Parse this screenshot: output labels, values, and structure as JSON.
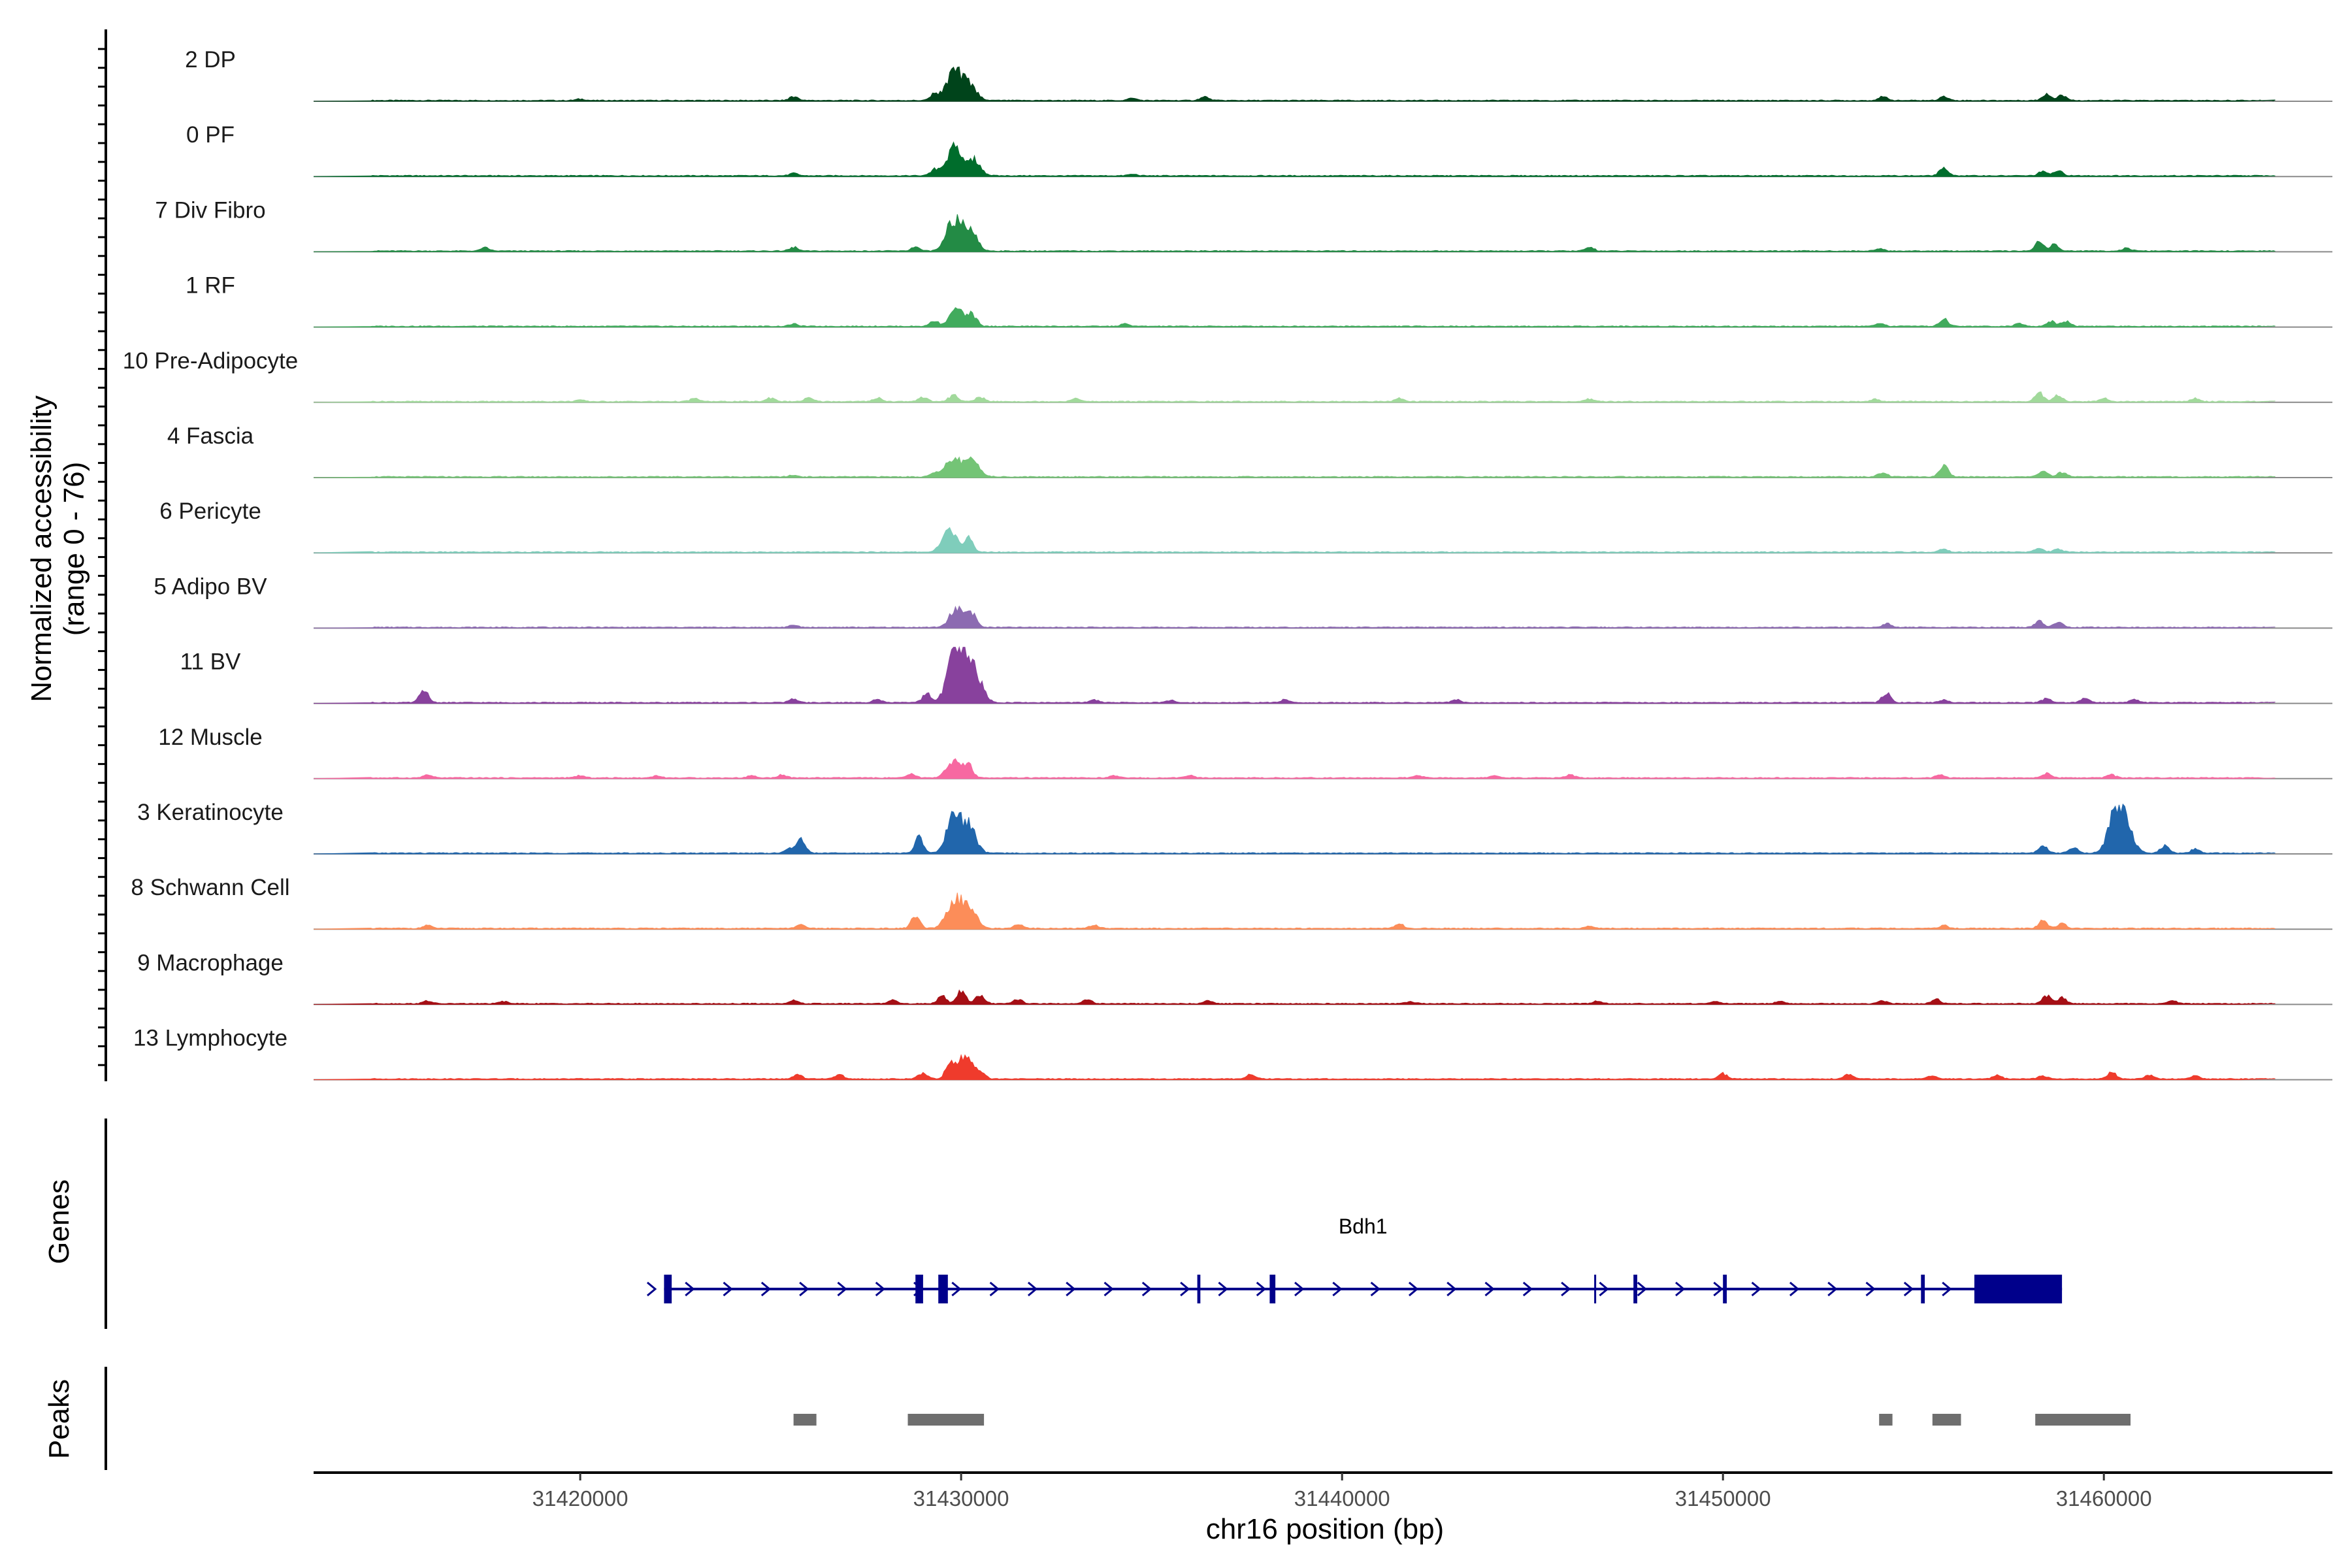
{
  "chart_data": {
    "type": "area",
    "title": "",
    "region": {
      "chrom": "chr16",
      "start": 31413000,
      "end": 31466000
    },
    "xlabel": "chr16 position (bp)",
    "ylabel_line1": "Normalized accessibility",
    "ylabel_line2": "(range 0 - 76)",
    "ylim": [
      0,
      76
    ],
    "x_ticks": [
      31420000,
      31430000,
      31440000,
      31450000,
      31460000
    ],
    "x_tick_labels": [
      "31420000",
      "31430000",
      "31440000",
      "31450000",
      "31460000"
    ],
    "panel_titles": {
      "genes": "Genes",
      "peaks": "Peaks"
    },
    "tracks": [
      {
        "name": "2 DP",
        "color": "#00441b",
        "peaks": [
          [
            31420000,
            2
          ],
          [
            31425600,
            5
          ],
          [
            31429300,
            9
          ],
          [
            31429800,
            38
          ],
          [
            31430200,
            22
          ],
          [
            31434500,
            3
          ],
          [
            31436400,
            5
          ],
          [
            31454200,
            5
          ],
          [
            31455800,
            5
          ],
          [
            31458500,
            9
          ],
          [
            31458900,
            7
          ]
        ]
      },
      {
        "name": "0 PF",
        "color": "#006d2c",
        "peaks": [
          [
            31425600,
            3
          ],
          [
            31429300,
            8
          ],
          [
            31429800,
            36
          ],
          [
            31430300,
            22
          ],
          [
            31434500,
            2
          ],
          [
            31455800,
            11
          ],
          [
            31458400,
            6
          ],
          [
            31458800,
            7
          ]
        ]
      },
      {
        "name": "7 Div Fibro",
        "color": "#238b45",
        "peaks": [
          [
            31417500,
            4
          ],
          [
            31425600,
            5
          ],
          [
            31428800,
            5
          ],
          [
            31429800,
            40
          ],
          [
            31430200,
            33
          ],
          [
            31446500,
            5
          ],
          [
            31454100,
            3
          ],
          [
            31458300,
            12
          ],
          [
            31458700,
            8
          ],
          [
            31460600,
            4
          ]
        ]
      },
      {
        "name": "1 RF",
        "color": "#41ab5d",
        "peaks": [
          [
            31425600,
            3
          ],
          [
            31429300,
            7
          ],
          [
            31429900,
            23
          ],
          [
            31430300,
            15
          ],
          [
            31434300,
            3
          ],
          [
            31454100,
            4
          ],
          [
            31455800,
            10
          ],
          [
            31457800,
            4
          ],
          [
            31458600,
            7
          ],
          [
            31459000,
            7
          ]
        ]
      },
      {
        "name": "10 Pre-Adipocyte",
        "color": "#a1d99b",
        "peaks": [
          [
            31420000,
            2
          ],
          [
            31423000,
            4
          ],
          [
            31425000,
            5
          ],
          [
            31426000,
            5
          ],
          [
            31427800,
            5
          ],
          [
            31429000,
            6
          ],
          [
            31429800,
            9
          ],
          [
            31430500,
            6
          ],
          [
            31433000,
            4
          ],
          [
            31441500,
            4
          ],
          [
            31446500,
            3
          ],
          [
            31454000,
            3
          ],
          [
            31458300,
            12
          ],
          [
            31458800,
            9
          ],
          [
            31460000,
            4
          ],
          [
            31462400,
            4
          ]
        ]
      },
      {
        "name": "4 Fascia",
        "color": "#74c476",
        "peaks": [
          [
            31425600,
            2
          ],
          [
            31429300,
            5
          ],
          [
            31429800,
            26
          ],
          [
            31430300,
            22
          ],
          [
            31454200,
            6
          ],
          [
            31455800,
            16
          ],
          [
            31458400,
            8
          ],
          [
            31458900,
            6
          ]
        ]
      },
      {
        "name": "6 Pericyte",
        "color": "#7fcdbb",
        "peaks": [
          [
            31429700,
            29
          ],
          [
            31430200,
            18
          ],
          [
            31455800,
            4
          ],
          [
            31458300,
            5
          ],
          [
            31458800,
            4
          ]
        ]
      },
      {
        "name": "5 Adipo BV",
        "color": "#8c6bb1",
        "peaks": [
          [
            31425600,
            3
          ],
          [
            31429900,
            27
          ],
          [
            31430300,
            17
          ],
          [
            31454300,
            5
          ],
          [
            31458300,
            8
          ],
          [
            31458800,
            7
          ]
        ]
      },
      {
        "name": "11 BV",
        "color": "#88419d",
        "peaks": [
          [
            31415900,
            16
          ],
          [
            31425600,
            5
          ],
          [
            31427800,
            5
          ],
          [
            31429100,
            12
          ],
          [
            31429800,
            55
          ],
          [
            31430100,
            45
          ],
          [
            31430400,
            30
          ],
          [
            31433500,
            4
          ],
          [
            31435500,
            3
          ],
          [
            31438500,
            4
          ],
          [
            31443000,
            4
          ],
          [
            31454300,
            13
          ],
          [
            31455800,
            4
          ],
          [
            31458500,
            6
          ],
          [
            31459500,
            6
          ],
          [
            31460800,
            4
          ]
        ]
      },
      {
        "name": "12 Muscle",
        "color": "#f768a1",
        "peaks": [
          [
            31416000,
            4
          ],
          [
            31420000,
            3
          ],
          [
            31422000,
            3
          ],
          [
            31424500,
            3
          ],
          [
            31425300,
            4
          ],
          [
            31428700,
            5
          ],
          [
            31429800,
            23
          ],
          [
            31430200,
            16
          ],
          [
            31434000,
            3
          ],
          [
            31436000,
            3
          ],
          [
            31442000,
            3
          ],
          [
            31444000,
            3
          ],
          [
            31446000,
            4
          ],
          [
            31455700,
            4
          ],
          [
            31458500,
            6
          ],
          [
            31460200,
            4
          ]
        ]
      },
      {
        "name": "3 Keratinocyte",
        "color": "#2166ac",
        "peaks": [
          [
            31425800,
            17
          ],
          [
            31425500,
            6
          ],
          [
            31428900,
            20
          ],
          [
            31429800,
            45
          ],
          [
            31430200,
            35
          ],
          [
            31458400,
            10
          ],
          [
            31459200,
            8
          ],
          [
            31460300,
            54
          ],
          [
            31460600,
            32
          ],
          [
            31461600,
            10
          ],
          [
            31462400,
            6
          ]
        ]
      },
      {
        "name": "8 Schwann Cell",
        "color": "#fc8d59",
        "peaks": [
          [
            31416000,
            4
          ],
          [
            31425800,
            5
          ],
          [
            31428800,
            15
          ],
          [
            31429800,
            37
          ],
          [
            31430200,
            30
          ],
          [
            31431500,
            6
          ],
          [
            31433500,
            5
          ],
          [
            31441500,
            6
          ],
          [
            31446500,
            3
          ],
          [
            31455800,
            4
          ],
          [
            31458400,
            10
          ],
          [
            31458900,
            7
          ]
        ]
      },
      {
        "name": "9 Macrophage",
        "color": "#a50f15",
        "peaks": [
          [
            31416000,
            4
          ],
          [
            31418000,
            3
          ],
          [
            31425600,
            5
          ],
          [
            31428200,
            5
          ],
          [
            31429500,
            10
          ],
          [
            31430000,
            18
          ],
          [
            31430500,
            12
          ],
          [
            31431500,
            6
          ],
          [
            31433300,
            6
          ],
          [
            31436500,
            4
          ],
          [
            31441800,
            3
          ],
          [
            31446700,
            3
          ],
          [
            31449800,
            3
          ],
          [
            31451500,
            3
          ],
          [
            31454200,
            4
          ],
          [
            31455600,
            6
          ],
          [
            31458500,
            11
          ],
          [
            31458900,
            8
          ],
          [
            31461800,
            4
          ]
        ]
      },
      {
        "name": "13 Lymphocyte",
        "color": "#ef3b2c",
        "peaks": [
          [
            31425700,
            6
          ],
          [
            31426800,
            6
          ],
          [
            31429000,
            8
          ],
          [
            31429700,
            18
          ],
          [
            31430100,
            30
          ],
          [
            31430500,
            10
          ],
          [
            31437600,
            6
          ],
          [
            31450000,
            7
          ],
          [
            31453300,
            6
          ],
          [
            31455500,
            5
          ],
          [
            31457200,
            5
          ],
          [
            31458400,
            5
          ],
          [
            31460200,
            9
          ],
          [
            31461200,
            5
          ],
          [
            31462400,
            4
          ]
        ]
      }
    ],
    "gene": {
      "name": "Bdh1",
      "strand": "+",
      "start": 31422200,
      "end": 31458900,
      "exons": [
        [
          31422200,
          31422400
        ],
        [
          31428800,
          31429000
        ],
        [
          31429400,
          31429650
        ],
        [
          31436200,
          31436280
        ],
        [
          31438100,
          31438250
        ],
        [
          31446620,
          31446660
        ],
        [
          31447650,
          31447750
        ],
        [
          31450000,
          31450100
        ],
        [
          31455200,
          31455300
        ],
        [
          31456600,
          31458900
        ]
      ]
    },
    "peaks": [
      [
        31425600,
        31426200
      ],
      [
        31428600,
        31430600
      ],
      [
        31454100,
        31454450
      ],
      [
        31455500,
        31456250
      ],
      [
        31458200,
        31460700
      ]
    ]
  }
}
